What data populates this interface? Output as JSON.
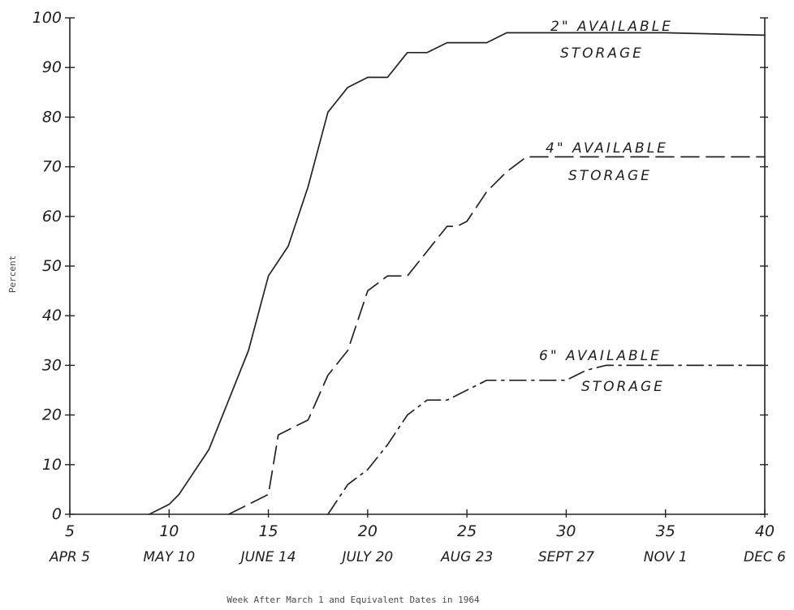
{
  "chart_data": {
    "type": "line",
    "ylabel": "Percent",
    "xlabel": "Week After March 1 and Equivalent Dates in 1964",
    "xlim": [
      5,
      40
    ],
    "ylim": [
      0,
      100
    ],
    "y_ticks": [
      0,
      10,
      20,
      30,
      40,
      50,
      60,
      70,
      80,
      90,
      100
    ],
    "y_tick_labels": [
      "0",
      "10",
      "20",
      "30",
      "40",
      "50",
      "60",
      "70",
      "80",
      "90",
      "100"
    ],
    "x_ticks": [
      5,
      10,
      15,
      20,
      25,
      30,
      35,
      40
    ],
    "x_tick_labels": [
      "5",
      "10",
      "15",
      "20",
      "25",
      "30",
      "35",
      "40"
    ],
    "x_date_labels": [
      "APR 5",
      "MAY 10",
      "JUNE 14",
      "JULY 20",
      "AUG 23",
      "SEPT 27",
      "NOV 1",
      "DEC 6"
    ],
    "grid": false,
    "series": [
      {
        "name": "2\" AVAILABLE STORAGE",
        "label_lines": [
          "2\" AVAILABLE",
          "STORAGE"
        ],
        "style": "solid",
        "x": [
          9,
          9.5,
          10,
          10.5,
          11,
          12,
          13,
          14,
          15,
          16,
          17,
          18,
          19,
          20,
          21,
          22,
          23,
          24,
          25,
          26,
          27,
          28,
          30,
          35,
          40
        ],
        "y": [
          0,
          1,
          2,
          4,
          7,
          13,
          23,
          33,
          48,
          54,
          66,
          81,
          86,
          88,
          88,
          93,
          93,
          95,
          95,
          95,
          97,
          97,
          97,
          97,
          96.5
        ]
      },
      {
        "name": "4\" AVAILABLE STORAGE",
        "label_lines": [
          "4\" AVAILABLE",
          "STORAGE"
        ],
        "style": "dashed",
        "x": [
          13,
          14,
          15,
          15.5,
          16,
          16.5,
          17,
          18,
          19,
          20,
          21,
          22,
          23,
          24,
          24.5,
          25,
          26,
          27,
          28,
          30,
          35,
          40
        ],
        "y": [
          0,
          2,
          4,
          16,
          17,
          18,
          19,
          28,
          33,
          45,
          48,
          48,
          53,
          58,
          58,
          59,
          65,
          69,
          72,
          72,
          72,
          72
        ]
      },
      {
        "name": "6\" AVAILABLE STORAGE",
        "label_lines": [
          "6\" AVAILABLE",
          "STORAGE"
        ],
        "style": "dashdot",
        "x": [
          18,
          19,
          20,
          21,
          22,
          23,
          24,
          25,
          26,
          27,
          28,
          30,
          31,
          32,
          35,
          40
        ],
        "y": [
          0,
          6,
          9,
          14,
          20,
          23,
          23,
          25,
          27,
          27,
          27,
          27,
          29,
          30,
          30,
          30
        ]
      }
    ]
  }
}
